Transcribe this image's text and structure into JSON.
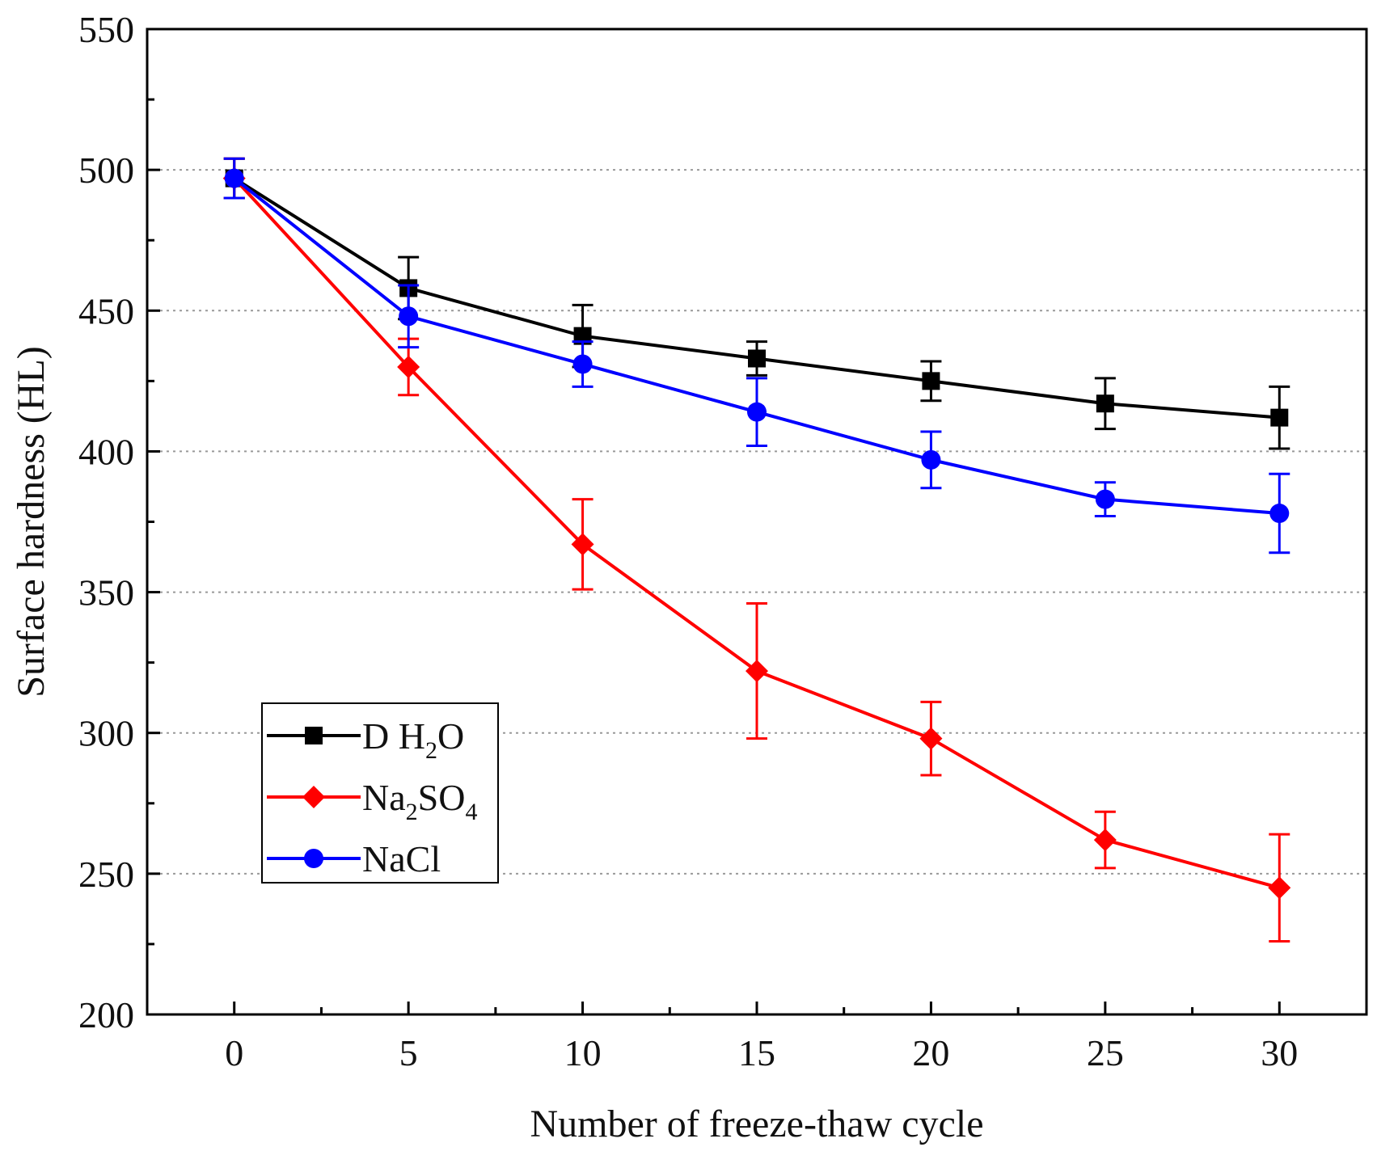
{
  "chart_data": {
    "type": "line",
    "x": [
      0,
      5,
      10,
      15,
      20,
      25,
      30
    ],
    "xlabel": "Number of freeze-thaw cycle",
    "ylabel": "Surface hardness (HL)",
    "xlim": [
      -2.5,
      32.5
    ],
    "ylim": [
      200,
      550
    ],
    "xticks": [
      0,
      5,
      10,
      15,
      20,
      25,
      30
    ],
    "yticks": [
      200,
      250,
      300,
      350,
      400,
      450,
      500,
      550
    ],
    "grid": "horizontal dotted",
    "legend_location": "bottom-left",
    "series": [
      {
        "id": "dh2o",
        "name": "D H2O",
        "legend_parts": [
          {
            "text": "D H",
            "sub": false
          },
          {
            "text": "2",
            "sub": true
          },
          {
            "text": "O",
            "sub": false
          }
        ],
        "color": "#000000",
        "marker": "square",
        "values": [
          497,
          458,
          441,
          433,
          425,
          417,
          412
        ],
        "errors": [
          7,
          11,
          11,
          6,
          7,
          9,
          11
        ]
      },
      {
        "id": "na2so4",
        "name": "Na2SO4",
        "legend_parts": [
          {
            "text": "Na",
            "sub": false
          },
          {
            "text": "2",
            "sub": true
          },
          {
            "text": "SO",
            "sub": false
          },
          {
            "text": "4",
            "sub": true
          }
        ],
        "color": "#ff0000",
        "marker": "diamond",
        "values": [
          497,
          430,
          367,
          322,
          298,
          262,
          245
        ],
        "errors": [
          7,
          10,
          16,
          24,
          13,
          10,
          19
        ]
      },
      {
        "id": "nacl",
        "name": "NaCl",
        "legend_parts": [
          {
            "text": "NaCl",
            "sub": false
          }
        ],
        "color": "#0000ff",
        "marker": "circle",
        "values": [
          497,
          448,
          431,
          414,
          397,
          383,
          378
        ],
        "errors": [
          7,
          11,
          8,
          12,
          10,
          6,
          14
        ]
      }
    ]
  }
}
